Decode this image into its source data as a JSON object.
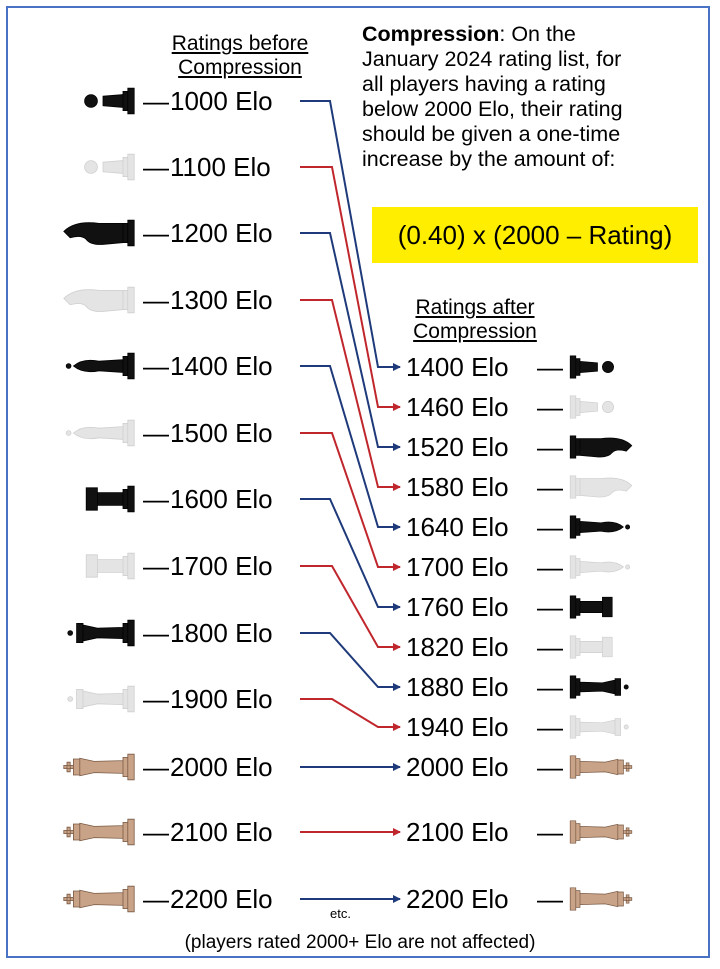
{
  "description": {
    "bold_term": "Compression",
    "text_lines": [
      ": On the",
      "January 2024 rating list, for",
      "all players having a rating",
      "below 2000 Elo, their rating",
      "should be given a one-time",
      "increase by the amount of:"
    ],
    "formula": "(0.40) x (2000 – Rating)"
  },
  "headers": {
    "before_line1": "Ratings before",
    "before_line2": "Compression",
    "after_line1": "Ratings after",
    "after_line2": "Compression"
  },
  "ratings": [
    {
      "before": "1000 Elo",
      "after": "1400 Elo",
      "piece": "pawn",
      "color": "black",
      "arrow": "#1f3a7a"
    },
    {
      "before": "1100 Elo",
      "after": "1460 Elo",
      "piece": "pawn",
      "color": "white",
      "arrow": "#c0272d"
    },
    {
      "before": "1200 Elo",
      "after": "1520 Elo",
      "piece": "knight",
      "color": "black",
      "arrow": "#1f3a7a"
    },
    {
      "before": "1300 Elo",
      "after": "1580 Elo",
      "piece": "knight",
      "color": "white",
      "arrow": "#c0272d"
    },
    {
      "before": "1400 Elo",
      "after": "1640 Elo",
      "piece": "bishop",
      "color": "black",
      "arrow": "#1f3a7a"
    },
    {
      "before": "1500 Elo",
      "after": "1700 Elo",
      "piece": "bishop",
      "color": "white",
      "arrow": "#c0272d"
    },
    {
      "before": "1600 Elo",
      "after": "1760 Elo",
      "piece": "rook",
      "color": "black",
      "arrow": "#1f3a7a"
    },
    {
      "before": "1700 Elo",
      "after": "1820 Elo",
      "piece": "rook",
      "color": "white",
      "arrow": "#c0272d"
    },
    {
      "before": "1800 Elo",
      "after": "1880 Elo",
      "piece": "queen",
      "color": "black",
      "arrow": "#1f3a7a"
    },
    {
      "before": "1900 Elo",
      "after": "1940 Elo",
      "piece": "queen",
      "color": "white",
      "arrow": "#c0272d"
    },
    {
      "before": "2000 Elo",
      "after": "2000 Elo",
      "piece": "king",
      "color": "bronze",
      "arrow": "#1f3a7a"
    },
    {
      "before": "2100 Elo",
      "after": "2100 Elo",
      "piece": "king",
      "color": "bronze",
      "arrow": "#c0272d"
    },
    {
      "before": "2200 Elo",
      "after": "2200 Elo",
      "piece": "king",
      "color": "bronze",
      "arrow": "#1f3a7a"
    }
  ],
  "etc_label": "etc.",
  "footnote": "(players rated 2000+ Elo are not affected)",
  "dash": "—",
  "colors": {
    "border": "#4a72c4",
    "highlight": "#ffee00",
    "blue_arrow": "#1f3a7a",
    "red_arrow": "#c0272d"
  }
}
